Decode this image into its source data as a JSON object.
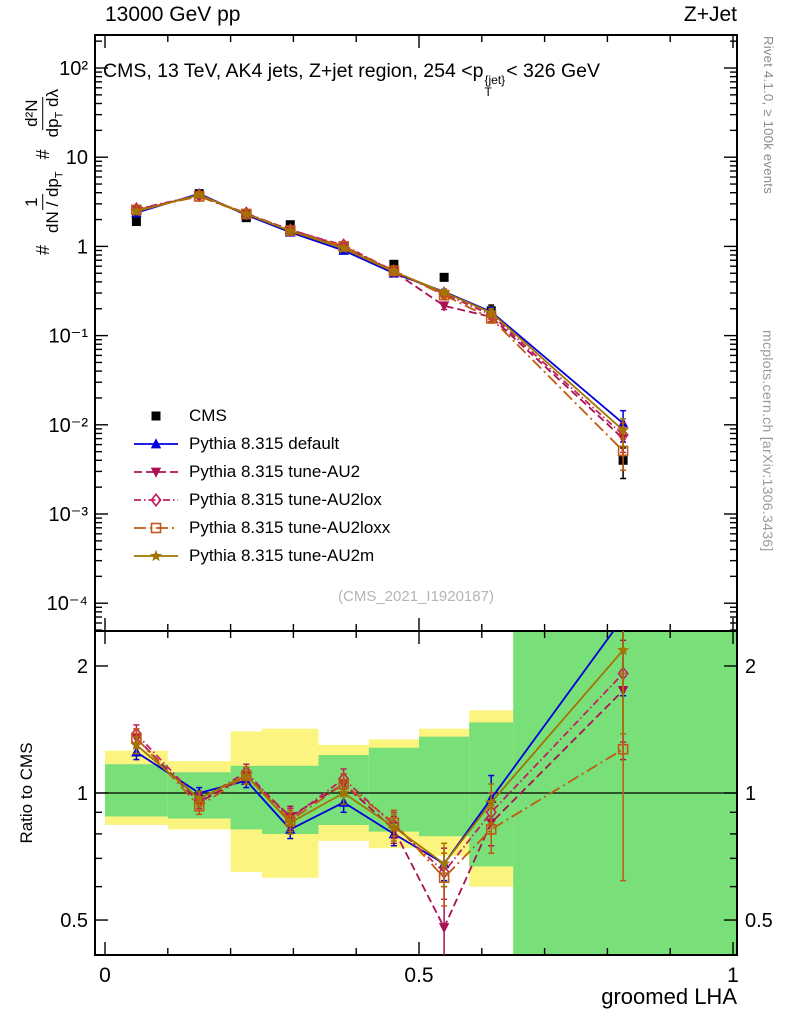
{
  "header": {
    "left": "13000 GeV pp",
    "right": "Z+Jet"
  },
  "side_notes": {
    "top": "Rivet 4.1.0, ≥ 100k events",
    "bottom": "mcplots.cern.ch [arXiv:1306.3436]"
  },
  "main_panel": {
    "title": {
      "pre": "CMS, 13 TeV, AK4 jets, Z+jet region, 254 <p",
      "sup": "{jet}",
      "sub": "T",
      "post": "< 326 GeV"
    },
    "ylabel": {
      "hash1": "#",
      "f1num": "1",
      "f1den_a": "dN / dp",
      "f1den_sub": "T",
      "hash2": "#",
      "f2num": "d²N",
      "f2den_a": "dp",
      "f2den_sub": "T",
      "f2den_b": " dλ"
    },
    "watermark": "(CMS_2021_I1920187)"
  },
  "ratio_panel": {
    "ylabel": "Ratio to CMS"
  },
  "xlabel": "groomed LHA",
  "chart_data": {
    "type": "line",
    "panels": [
      "differential spectrum, log y",
      "ratio to CMS, log y"
    ],
    "x": [
      0.05,
      0.15,
      0.225,
      0.295,
      0.38,
      0.46,
      0.54,
      0.615,
      0.825
    ],
    "bin_edges": [
      0,
      0.1,
      0.2,
      0.25,
      0.34,
      0.42,
      0.5,
      0.58,
      0.65,
      1.0
    ],
    "xlim": [
      -0.016,
      1.006
    ],
    "main_ylog_range": [
      -4.31,
      2.37
    ],
    "ratio_range": [
      0.413,
      2.42
    ],
    "axes": {
      "main_yticks": [
        {
          "v": 100,
          "label": "10²"
        },
        {
          "v": 10,
          "label": "10"
        },
        {
          "v": 1,
          "label": "1"
        },
        {
          "v": 0.1,
          "label": "10⁻¹"
        },
        {
          "v": 0.01,
          "label": "10⁻²"
        },
        {
          "v": 0.001,
          "label": "10⁻³"
        },
        {
          "v": 0.0001,
          "label": "10⁻⁴"
        }
      ],
      "ratio_yticks": [
        {
          "v": 2,
          "label": "2"
        },
        {
          "v": 1,
          "label": "1"
        },
        {
          "v": 0.5,
          "label": "0.5"
        }
      ],
      "xticks": [
        {
          "v": 0,
          "label": "0"
        },
        {
          "v": 0.5,
          "label": "0.5"
        },
        {
          "v": 1,
          "label": "1"
        }
      ]
    },
    "series": [
      {
        "id": "cms",
        "label": "CMS",
        "color": "#000000",
        "marker": "square-filled",
        "line": "none",
        "values": [
          1.9,
          3.9,
          2.1,
          1.75,
          0.95,
          0.63,
          0.45,
          0.19,
          0.004
        ],
        "errors": [
          0.15,
          0.2,
          0.12,
          0.1,
          0.07,
          0.05,
          0.04,
          0.03,
          0.0015
        ]
      },
      {
        "id": "pythia-default",
        "label": "Pythia 8.315 default",
        "color": "#0000dd",
        "marker": "triangle-up-filled",
        "line": "solid",
        "values": [
          2.38,
          3.9,
          2.25,
          1.44,
          0.9,
          0.5,
          0.31,
          0.185,
          0.0104
        ],
        "errors": [
          0.08,
          0.1,
          0.07,
          0.05,
          0.04,
          0.03,
          0.02,
          0.02,
          0.004
        ],
        "ratio": [
          1.25,
          1.0,
          1.07,
          0.82,
          0.95,
          0.8,
          0.68,
          0.97,
          2.6
        ],
        "ratio_errors": [
          0.05,
          0.03,
          0.04,
          0.04,
          0.05,
          0.05,
          0.06,
          0.13,
          0.9
        ]
      },
      {
        "id": "pythia-au2",
        "label": "Pythia 8.315 tune-AU2",
        "color": "#aa1155",
        "marker": "triangle-down-filled",
        "line": "dashed",
        "values": [
          2.57,
          3.71,
          2.31,
          1.54,
          1.0,
          0.52,
          0.216,
          0.162,
          0.007
        ],
        "errors": [
          0.09,
          0.1,
          0.07,
          0.05,
          0.04,
          0.03,
          0.02,
          0.018,
          0.0025
        ],
        "ratio": [
          1.35,
          0.95,
          1.1,
          0.88,
          1.05,
          0.82,
          0.48,
          0.85,
          1.75
        ],
        "ratio_errors": [
          0.07,
          0.04,
          0.05,
          0.05,
          0.06,
          0.06,
          0.12,
          0.1,
          0.55
        ]
      },
      {
        "id": "pythia-au2lox",
        "label": "Pythia 8.315 tune-AU2lox",
        "color": "#c2205f",
        "marker": "diamond-open",
        "line": "dashdot",
        "values": [
          2.62,
          3.74,
          2.35,
          1.52,
          1.03,
          0.53,
          0.293,
          0.171,
          0.0077
        ],
        "errors": [
          0.09,
          0.1,
          0.07,
          0.05,
          0.04,
          0.03,
          0.02,
          0.018,
          0.0028
        ],
        "ratio": [
          1.38,
          0.96,
          1.12,
          0.87,
          1.08,
          0.84,
          0.65,
          0.9,
          1.92
        ],
        "ratio_errors": [
          0.07,
          0.04,
          0.05,
          0.05,
          0.06,
          0.06,
          0.09,
          0.1,
          0.6
        ]
      },
      {
        "id": "pythia-au2loxx",
        "label": "Pythia 8.315 tune-AU2loxx",
        "color": "#c05a12",
        "marker": "square-open",
        "line": "longdashdot",
        "values": [
          2.57,
          3.63,
          2.31,
          1.5,
          1.0,
          0.535,
          0.284,
          0.156,
          0.0051
        ],
        "errors": [
          0.09,
          0.1,
          0.07,
          0.05,
          0.04,
          0.03,
          0.02,
          0.018,
          0.002
        ],
        "ratio": [
          1.35,
          0.93,
          1.1,
          0.86,
          1.05,
          0.85,
          0.63,
          0.82,
          1.27
        ],
        "ratio_errors": [
          0.07,
          0.04,
          0.05,
          0.05,
          0.06,
          0.06,
          0.09,
          0.1,
          0.65
        ]
      },
      {
        "id": "pythia-au2m",
        "label": "Pythia 8.315 tune-AU2m",
        "color": "#a37400",
        "marker": "star-filled",
        "line": "solid",
        "values": [
          2.47,
          3.78,
          2.31,
          1.49,
          0.95,
          0.52,
          0.306,
          0.181,
          0.0087
        ],
        "errors": [
          0.09,
          0.1,
          0.07,
          0.05,
          0.04,
          0.03,
          0.02,
          0.018,
          0.003
        ],
        "ratio": [
          1.3,
          0.97,
          1.1,
          0.85,
          1.0,
          0.83,
          0.68,
          0.95,
          2.18
        ],
        "ratio_errors": [
          0.06,
          0.04,
          0.05,
          0.05,
          0.06,
          0.06,
          0.08,
          0.1,
          0.8
        ]
      }
    ],
    "ratio_bands": {
      "yellow_color": "#fbf47e",
      "green_color": "#79df79",
      "bins": [
        {
          "x0": 0.0,
          "x1": 0.1,
          "yellow": [
            0.84,
            1.26
          ],
          "green": [
            0.88,
            1.17
          ]
        },
        {
          "x0": 0.1,
          "x1": 0.2,
          "yellow": [
            0.82,
            1.19
          ],
          "green": [
            0.87,
            1.12
          ]
        },
        {
          "x0": 0.2,
          "x1": 0.25,
          "yellow": [
            0.65,
            1.4
          ],
          "green": [
            0.82,
            1.16
          ]
        },
        {
          "x0": 0.25,
          "x1": 0.34,
          "yellow": [
            0.63,
            1.42
          ],
          "green": [
            0.8,
            1.16
          ]
        },
        {
          "x0": 0.34,
          "x1": 0.42,
          "yellow": [
            0.77,
            1.3
          ],
          "green": [
            0.84,
            1.23
          ]
        },
        {
          "x0": 0.42,
          "x1": 0.5,
          "yellow": [
            0.74,
            1.34
          ],
          "green": [
            0.81,
            1.28
          ]
        },
        {
          "x0": 0.5,
          "x1": 0.58,
          "yellow": [
            0.71,
            1.42
          ],
          "green": [
            0.79,
            1.36
          ]
        },
        {
          "x0": 0.58,
          "x1": 0.65,
          "yellow": [
            0.6,
            1.57
          ],
          "green": [
            0.67,
            1.47
          ]
        },
        {
          "x0": 0.65,
          "x1": 1.0,
          "yellow": [
            0.413,
            2.42
          ],
          "green": [
            0.413,
            2.42
          ]
        }
      ]
    }
  }
}
